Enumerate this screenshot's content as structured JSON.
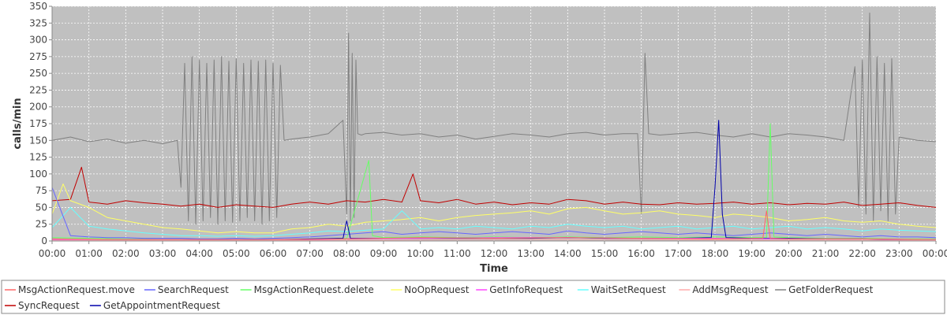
{
  "chart_data": {
    "type": "line",
    "title": "",
    "xlabel": "Time",
    "ylabel": "calls/min",
    "ylim": [
      0,
      350
    ],
    "yticks": [
      0,
      25,
      50,
      75,
      100,
      125,
      150,
      175,
      200,
      225,
      250,
      275,
      300,
      325,
      350
    ],
    "xticks": [
      "00:00",
      "01:00",
      "02:00",
      "03:00",
      "04:00",
      "05:00",
      "06:00",
      "07:00",
      "08:00",
      "09:00",
      "10:00",
      "11:00",
      "12:00",
      "13:00",
      "14:00",
      "15:00",
      "16:00",
      "17:00",
      "18:00",
      "19:00",
      "20:00",
      "21:00",
      "22:00",
      "23:00",
      "00:00"
    ],
    "grid": true,
    "legend_position": "bottom",
    "plot_background": "#c0c0c0",
    "series": [
      {
        "name": "GetFolderRequest",
        "color": "#808080",
        "x": [
          0,
          0.5,
          1,
          1.5,
          2,
          2.5,
          3,
          3.4,
          3.5,
          3.6,
          3.7,
          3.8,
          3.9,
          4,
          4.1,
          4.2,
          4.3,
          4.4,
          4.5,
          4.6,
          4.7,
          4.8,
          4.9,
          5,
          5.1,
          5.2,
          5.3,
          5.4,
          5.5,
          5.6,
          5.7,
          5.8,
          5.9,
          6,
          6.1,
          6.2,
          6.3,
          6.5,
          7,
          7.5,
          7.9,
          8,
          8.05,
          8.1,
          8.15,
          8.2,
          8.25,
          8.3,
          8.4,
          8.5,
          9,
          9.5,
          10,
          10.5,
          11,
          11.5,
          12,
          12.5,
          13,
          13.5,
          14,
          14.5,
          15,
          15.5,
          15.9,
          16,
          16.1,
          16.2,
          16.5,
          17,
          17.5,
          18,
          18.5,
          19,
          19.5,
          20,
          20.5,
          21,
          21.5,
          21.8,
          21.9,
          22,
          22.1,
          22.2,
          22.3,
          22.4,
          22.5,
          22.6,
          22.7,
          22.8,
          22.9,
          23,
          23.5,
          24
        ],
        "y": [
          150,
          155,
          148,
          152,
          146,
          150,
          145,
          150,
          80,
          265,
          30,
          275,
          25,
          270,
          30,
          265,
          35,
          270,
          25,
          275,
          30,
          268,
          28,
          272,
          30,
          265,
          35,
          270,
          30,
          268,
          25,
          270,
          30,
          265,
          35,
          262,
          150,
          152,
          155,
          160,
          180,
          40,
          310,
          30,
          280,
          35,
          270,
          160,
          158,
          160,
          162,
          158,
          160,
          155,
          158,
          152,
          156,
          160,
          158,
          155,
          160,
          162,
          158,
          160,
          160,
          40,
          280,
          160,
          158,
          160,
          162,
          158,
          155,
          160,
          155,
          160,
          158,
          155,
          150,
          260,
          50,
          270,
          40,
          340,
          30,
          275,
          45,
          265,
          30,
          272,
          40,
          155,
          150,
          148
        ]
      },
      {
        "name": "SyncRequest",
        "color": "#c00000",
        "x": [
          0,
          0.5,
          0.8,
          1,
          1.5,
          2,
          2.5,
          3,
          3.5,
          4,
          4.5,
          5,
          5.5,
          6,
          6.5,
          7,
          7.5,
          8,
          8.5,
          9,
          9.5,
          9.8,
          10,
          10.5,
          11,
          11.5,
          12,
          12.5,
          13,
          13.5,
          14,
          14.5,
          15,
          15.5,
          16,
          16.5,
          17,
          17.5,
          18,
          18.5,
          19,
          19.5,
          20,
          20.5,
          21,
          21.5,
          22,
          22.5,
          23,
          23.5,
          24
        ],
        "y": [
          60,
          62,
          110,
          58,
          55,
          60,
          57,
          55,
          52,
          55,
          50,
          54,
          52,
          50,
          55,
          58,
          55,
          60,
          58,
          62,
          58,
          100,
          60,
          57,
          62,
          55,
          58,
          54,
          57,
          55,
          62,
          60,
          55,
          58,
          55,
          54,
          57,
          55,
          56,
          58,
          55,
          57,
          54,
          56,
          55,
          58,
          53,
          55,
          57,
          53,
          50
        ]
      },
      {
        "name": "NoOpRequest",
        "color": "#ffff66",
        "x": [
          0,
          0.3,
          0.5,
          1,
          1.5,
          2,
          2.5,
          3,
          3.5,
          4,
          4.5,
          5,
          5.5,
          6,
          6.5,
          7,
          7.5,
          8,
          8.5,
          9,
          9.5,
          10,
          10.5,
          11,
          11.5,
          12,
          12.5,
          13,
          13.5,
          14,
          14.5,
          15,
          15.5,
          16,
          16.5,
          17,
          17.5,
          18,
          18.5,
          19,
          19.5,
          20,
          20.5,
          21,
          21.5,
          22,
          22.5,
          23,
          23.5,
          24
        ],
        "y": [
          40,
          85,
          60,
          50,
          35,
          30,
          25,
          20,
          18,
          15,
          12,
          14,
          12,
          12,
          18,
          20,
          25,
          22,
          28,
          30,
          32,
          35,
          30,
          35,
          38,
          40,
          42,
          45,
          40,
          48,
          50,
          45,
          40,
          42,
          45,
          40,
          38,
          35,
          40,
          38,
          35,
          30,
          32,
          35,
          30,
          28,
          30,
          25,
          22,
          20
        ]
      },
      {
        "name": "WaitSetRequest",
        "color": "#66ffff",
        "x": [
          0,
          0.5,
          1,
          1.5,
          2,
          2.5,
          3,
          3.5,
          4,
          4.5,
          5,
          5.5,
          6,
          6.5,
          7,
          7.5,
          8,
          8.5,
          9,
          9.5,
          10,
          10.5,
          11,
          11.5,
          12,
          12.5,
          13,
          13.5,
          14,
          14.5,
          15,
          15.5,
          16,
          16.5,
          17,
          17.5,
          18,
          18.5,
          19,
          19.5,
          20,
          20.5,
          21,
          21.5,
          22,
          22.5,
          23,
          23.5,
          24
        ],
        "y": [
          20,
          50,
          22,
          18,
          15,
          12,
          10,
          8,
          8,
          7,
          8,
          7,
          8,
          10,
          12,
          15,
          14,
          16,
          18,
          45,
          18,
          20,
          18,
          22,
          20,
          18,
          22,
          20,
          25,
          22,
          20,
          22,
          18,
          20,
          22,
          18,
          20,
          22,
          18,
          20,
          22,
          18,
          20,
          18,
          15,
          18,
          16,
          15,
          14
        ]
      },
      {
        "name": "SearchRequest",
        "color": "#6666ff",
        "x": [
          0,
          0.5,
          1,
          1.5,
          2,
          2.5,
          3,
          3.5,
          4,
          4.5,
          5,
          5.5,
          6,
          6.5,
          7,
          7.5,
          8,
          8.5,
          9,
          9.5,
          10,
          10.5,
          11,
          11.5,
          12,
          12.5,
          13,
          13.5,
          14,
          14.5,
          15,
          15.5,
          16,
          16.5,
          17,
          17.5,
          18,
          18.5,
          19,
          19.5,
          20,
          20.5,
          21,
          21.5,
          22,
          22.5,
          23,
          23.5,
          24
        ],
        "y": [
          80,
          8,
          6,
          5,
          5,
          4,
          4,
          4,
          3,
          3,
          4,
          3,
          4,
          5,
          6,
          8,
          10,
          12,
          14,
          10,
          12,
          14,
          12,
          10,
          12,
          14,
          12,
          10,
          15,
          12,
          10,
          12,
          14,
          12,
          10,
          12,
          10,
          8,
          10,
          12,
          10,
          8,
          10,
          8,
          6,
          8,
          6,
          6,
          5
        ]
      },
      {
        "name": "MsgActionRequest.delete",
        "color": "#66ff66",
        "x": [
          0,
          1,
          2,
          3,
          4,
          5,
          6,
          7,
          8,
          8.6,
          8.7,
          9,
          10,
          11,
          12,
          13,
          14,
          15,
          16,
          17,
          18,
          19,
          19.4,
          19.5,
          19.6,
          20,
          21,
          22,
          23,
          24
        ],
        "y": [
          5,
          4,
          3,
          2,
          2,
          2,
          2,
          3,
          4,
          120,
          8,
          5,
          6,
          5,
          6,
          5,
          6,
          5,
          6,
          5,
          6,
          5,
          5,
          175,
          6,
          5,
          4,
          4,
          3,
          3
        ]
      },
      {
        "name": "GetAppointmentRequest",
        "color": "#0000aa",
        "x": [
          0,
          1,
          2,
          3,
          4,
          5,
          6,
          7,
          7.9,
          8,
          8.1,
          9,
          10,
          11,
          12,
          13,
          14,
          15,
          16,
          17,
          17.9,
          18,
          18.1,
          18.2,
          18.3,
          19,
          20,
          21,
          22,
          23,
          24
        ],
        "y": [
          2,
          2,
          2,
          2,
          2,
          2,
          2,
          3,
          4,
          30,
          4,
          4,
          4,
          4,
          4,
          4,
          5,
          4,
          4,
          4,
          5,
          80,
          180,
          40,
          5,
          4,
          4,
          3,
          3,
          2,
          2
        ]
      },
      {
        "name": "GetInfoRequest",
        "color": "#ff44ff",
        "x": [
          0,
          2,
          4,
          6,
          8,
          10,
          12,
          14,
          16,
          18,
          20,
          22,
          24
        ],
        "y": [
          2,
          2,
          1,
          1,
          3,
          4,
          5,
          5,
          4,
          4,
          3,
          3,
          2
        ]
      },
      {
        "name": "MsgActionRequest.move",
        "color": "#ff6666",
        "x": [
          0,
          2,
          4,
          6,
          8,
          10,
          12,
          14,
          16,
          18,
          19.3,
          19.4,
          19.5,
          20,
          22,
          24
        ],
        "y": [
          3,
          2,
          2,
          2,
          3,
          5,
          4,
          5,
          4,
          3,
          4,
          45,
          4,
          3,
          3,
          2
        ]
      },
      {
        "name": "AddMsgRequest",
        "color": "#ffaaaa",
        "x": [
          0,
          4,
          8,
          12,
          16,
          20,
          24
        ],
        "y": [
          1,
          1,
          1,
          2,
          2,
          1,
          1
        ]
      }
    ],
    "legend": [
      "MsgActionRequest.move",
      "SearchRequest",
      "MsgActionRequest.delete",
      "NoOpRequest",
      "GetInfoRequest",
      "WaitSetRequest",
      "AddMsgRequest",
      "GetFolderRequest",
      "SyncRequest",
      "GetAppointmentRequest"
    ]
  }
}
